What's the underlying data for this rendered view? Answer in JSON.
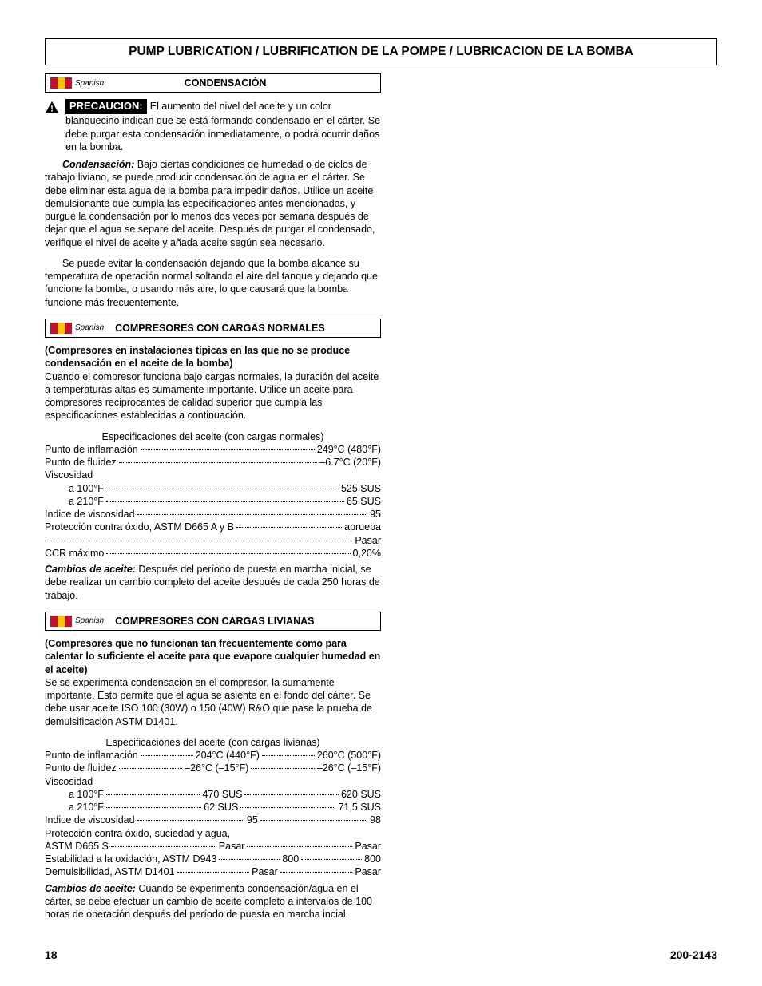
{
  "header": {
    "title": "PUMP LUBRICATION / LUBRIFICATION DE LA POMPE / LUBRICACION DE LA BOMBA"
  },
  "flag_colors": [
    "#c8102e",
    "#ffc400",
    "#c8102e"
  ],
  "lang_label": "Spanish",
  "section1": {
    "title": "CONDENSACIÓN",
    "caution_label": "PRECAUCION:",
    "caution_text": "El aumento del nivel del aceite y un color blanquecino indican que se está formando condensado en el cárter. Se debe purgar esta condensación inmediatamente, o podrá ocurrir daños en la bomba.",
    "p1_lead": "Condensación:",
    "p1": "Bajo ciertas condiciones de humedad o de ciclos de trabajo liviano, se puede producir condensación de agua en el cárter. Se debe eliminar esta agua de la bomba para impedir daños. Utilice un aceite demulsionante que cumpla las especificaciones antes mencionadas, y purgue la condensación por lo menos dos veces por semana después de dejar que el agua se separe del aceite. Después de purgar el condensado, verifique el nivel de aceite y añada aceite según sea necesario.",
    "p2": "Se puede evitar la condensación dejando que la bomba alcance su temperatura de operación normal soltando el aire del tanque y dejando que funcione la bomba, o usando más aire, lo que causará que la bomba funcione más frecuentemente."
  },
  "section2": {
    "title": "COMPRESORES CON CARGAS NORMALES",
    "sub": "(Compresores en instalaciones típicas en las que no se produce condensación en el aceite de la bomba)",
    "body": "Cuando el compresor funciona bajo cargas normales, la duración del aceite a temperaturas altas es sumamente importante. Utilice un aceite para compresores reciprocantes de calidad superior que cumpla las especificaciones establecidas a continuación.",
    "spec_title": "Especificaciones del aceite (con cargas normales)",
    "rows": [
      {
        "label": "Punto de inflamación",
        "val": "249°C (480°F)"
      },
      {
        "label": "Punto de fluidez",
        "val": "–6.7°C (20°F)"
      },
      {
        "label": "Viscosidad",
        "val": "",
        "nodots": true
      },
      {
        "label": "a 100°F",
        "val": "525 SUS",
        "indent": true
      },
      {
        "label": "a 210°F",
        "val": "65 SUS",
        "indent": true
      },
      {
        "label": "Indice de viscosidad",
        "val": "95"
      },
      {
        "label": "Protección contra óxido, ASTM D665 A y B",
        "val": "aprueba"
      },
      {
        "label": "",
        "val": "Pasar"
      },
      {
        "label": "CCR máximo",
        "val": "0,20%"
      }
    ],
    "changes_lead": "Cambios de aceite:",
    "changes": "Después del período de puesta en marcha inicial, se debe realizar un cambio completo del aceite después de cada 250 horas de trabajo."
  },
  "section3": {
    "title": "COMPRESORES CON CARGAS LIVIANAS",
    "sub": "(Compresores que no funcionan tan frecuentemente como para calentar lo suficiente el aceite para que evapore cualquier humedad en el aceite)",
    "body": "Se se experimenta condensación en el compresor, la sumamente importante. Esto permite que el agua se asiente en el fondo del cárter. Se debe usar aceite ISO 100 (30W) o 150 (40W) R&O que pase la prueba de demulsificación ASTM D1401.",
    "spec_title": "Especificaciones del aceite (con cargas livianas)",
    "rows": [
      {
        "label": "Punto de inflamación",
        "v1": "204°C (440°F)",
        "v2": "260°C (500°F)"
      },
      {
        "label": "Punto de fluidez",
        "v1": "–26°C (–15°F)",
        "v2": "–26°C (–15°F)"
      },
      {
        "label": "Viscosidad",
        "nodots": true
      },
      {
        "label": "a 100°F",
        "v1": "470 SUS",
        "v2": "620 SUS",
        "indent": true
      },
      {
        "label": "a 210°F",
        "v1": "62 SUS",
        "v2": "71,5 SUS",
        "indent": true
      },
      {
        "label": "Indice de viscosidad",
        "v1": "95",
        "v2": "98"
      },
      {
        "label": "Protección contra óxido, suciedad y agua,",
        "nodots": true
      },
      {
        "label": "ASTM D665 S",
        "v1": "Pasar",
        "v2": "Pasar"
      },
      {
        "label": "Estabilidad a la oxidación, ASTM D943",
        "v1": "800",
        "v2": "800"
      },
      {
        "label": "Demulsibilidad, ASTM D1401",
        "v1": "Pasar",
        "v2": "Pasar"
      }
    ],
    "changes_lead": "Cambios de aceite:",
    "changes": "Cuando se experimenta condensación/agua en el cárter, se debe efectuar un cambio de aceite completo a intervalos de 100 horas de operación después del período de puesta en marcha incial."
  },
  "footer": {
    "page": "18",
    "doc": "200-2143"
  }
}
